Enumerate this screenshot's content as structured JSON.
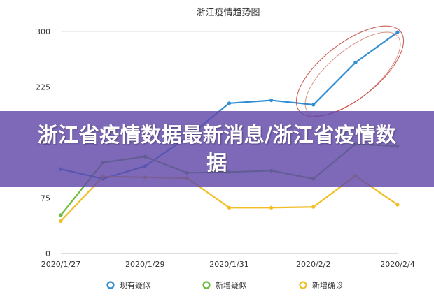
{
  "overlay": {
    "headline": "浙江省疫情数据最新消息/浙江省疫情数据"
  },
  "chart_data": {
    "type": "line",
    "title": "浙江疫情趋势图",
    "xlabel": "",
    "ylabel": "",
    "x": [
      "2020/1/27",
      "2020/1/28",
      "2020/1/29",
      "2020/1/30",
      "2020/1/31",
      "2020/2/1",
      "2020/2/2",
      "2020/2/3",
      "2020/2/4"
    ],
    "xtick_labels": [
      "2020/1/27",
      "2020/1/29",
      "2020/1/31",
      "2020/2/2",
      "2020/2/4"
    ],
    "yticks": [
      0,
      75,
      150,
      225,
      300
    ],
    "ylim": [
      0,
      300
    ],
    "grid": true,
    "legend_position": "bottom",
    "series": [
      {
        "name": "现有疑似",
        "color": "#2f8fd2",
        "values": [
          114,
          101,
          118,
          157,
          203,
          207,
          201,
          258,
          299
        ]
      },
      {
        "name": "新增疑似",
        "color": "#6cbb3c",
        "values": [
          52,
          123,
          131,
          109,
          110,
          112,
          101,
          148,
          145
        ]
      },
      {
        "name": "新增确诊",
        "color": "#f3bd26",
        "values": [
          44,
          104,
          103,
          102,
          62,
          62,
          63,
          105,
          66
        ]
      }
    ],
    "annotations": [
      "red hand-drawn ellipse around the rising 现有疑似 segment from 2020/2/2 to 2020/2/4"
    ]
  }
}
